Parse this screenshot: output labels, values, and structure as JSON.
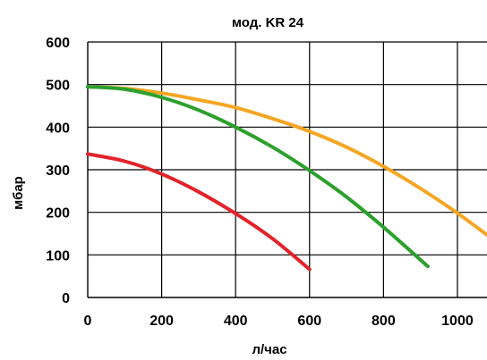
{
  "chart_data": {
    "type": "line",
    "title": "мод. KR 24",
    "xlabel": "л/час",
    "ylabel": "мбар",
    "xlim": [
      0,
      1080
    ],
    "ylim": [
      0,
      600
    ],
    "xticks": [
      0,
      200,
      400,
      600,
      800,
      1000
    ],
    "yticks": [
      0,
      100,
      200,
      300,
      400,
      500,
      600
    ],
    "grid": true,
    "legend": "none",
    "series": [
      {
        "color": "#f5a623",
        "x": [
          0,
          100,
          200,
          300,
          400,
          500,
          600,
          700,
          800,
          900,
          1000,
          1080
        ],
        "y": [
          495,
          491,
          480,
          464,
          446,
          420,
          390,
          353,
          308,
          256,
          198,
          147
        ]
      },
      {
        "color": "#2ca02c",
        "x": [
          0,
          100,
          200,
          300,
          400,
          500,
          600,
          700,
          800,
          920
        ],
        "y": [
          495,
          489,
          470,
          440,
          400,
          353,
          298,
          236,
          165,
          73
        ]
      },
      {
        "color": "#e2232a",
        "x": [
          0,
          100,
          200,
          300,
          400,
          500,
          600
        ],
        "y": [
          337,
          320,
          290,
          248,
          197,
          138,
          66
        ]
      }
    ]
  }
}
